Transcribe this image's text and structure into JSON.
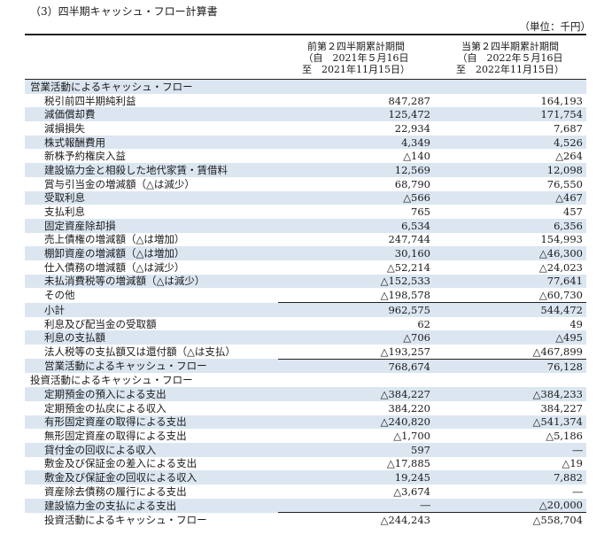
{
  "page": {
    "heading": "（3）四半期キャッシュ・フロー計算書",
    "unit_note": "（単位：千円）"
  },
  "columns": {
    "prev": {
      "title": "前第２四半期累計期間",
      "from": "（自　2021年５月16日",
      "to": "至　2021年11月15日）"
    },
    "curr": {
      "title": "当第２四半期累計期間",
      "from": "（自　2022年５月16日",
      "to": "至　2022年11月15日）"
    }
  },
  "rows": [
    {
      "label": "営業活動によるキャッシュ・フロー",
      "prev": "",
      "curr": "",
      "kind": "section"
    },
    {
      "label": "税引前四半期純利益",
      "prev": "847,287",
      "curr": "164,193",
      "kind": "item"
    },
    {
      "label": "減価償却費",
      "prev": "125,472",
      "curr": "171,754",
      "kind": "item"
    },
    {
      "label": "減損損失",
      "prev": "22,934",
      "curr": "7,687",
      "kind": "item"
    },
    {
      "label": "株式報酬費用",
      "prev": "4,349",
      "curr": "4,526",
      "kind": "item"
    },
    {
      "label": "新株予約権戻入益",
      "prev": "△140",
      "curr": "△264",
      "kind": "item"
    },
    {
      "label": "建設協力金と相殺した地代家賃・賃借料",
      "prev": "12,569",
      "curr": "12,098",
      "kind": "item"
    },
    {
      "label": "賞与引当金の増減額（△は減少）",
      "prev": "68,790",
      "curr": "76,550",
      "kind": "item"
    },
    {
      "label": "受取利息",
      "prev": "△566",
      "curr": "△467",
      "kind": "item"
    },
    {
      "label": "支払利息",
      "prev": "765",
      "curr": "457",
      "kind": "item"
    },
    {
      "label": "固定資産除却損",
      "prev": "6,534",
      "curr": "6,356",
      "kind": "item"
    },
    {
      "label": "売上債権の増減額（△は増加）",
      "prev": "247,744",
      "curr": "154,993",
      "kind": "item"
    },
    {
      "label": "棚卸資産の増減額（△は増加）",
      "prev": "30,160",
      "curr": "△46,300",
      "kind": "item"
    },
    {
      "label": "仕入債務の増減額（△は減少）",
      "prev": "△52,214",
      "curr": "△24,023",
      "kind": "item"
    },
    {
      "label": "未払消費税等の増減額（△は減少）",
      "prev": "△152,533",
      "curr": "77,641",
      "kind": "item"
    },
    {
      "label": "その他",
      "prev": "△198,578",
      "curr": "△60,730",
      "kind": "item"
    },
    {
      "label": "小計",
      "prev": "962,575",
      "curr": "544,472",
      "kind": "subtotal"
    },
    {
      "label": "利息及び配当金の受取額",
      "prev": "62",
      "curr": "49",
      "kind": "item"
    },
    {
      "label": "利息の支払額",
      "prev": "△706",
      "curr": "△495",
      "kind": "item"
    },
    {
      "label": "法人税等の支払額又は還付額（△は支払）",
      "prev": "△193,257",
      "curr": "△467,899",
      "kind": "item"
    },
    {
      "label": "営業活動によるキャッシュ・フロー",
      "prev": "768,674",
      "curr": "76,128",
      "kind": "subtotal"
    },
    {
      "label": "投資活動によるキャッシュ・フロー",
      "prev": "",
      "curr": "",
      "kind": "section"
    },
    {
      "label": "定期預金の預入による支出",
      "prev": "△384,227",
      "curr": "△384,233",
      "kind": "item"
    },
    {
      "label": "定期預金の払戻による収入",
      "prev": "384,220",
      "curr": "384,227",
      "kind": "item"
    },
    {
      "label": "有形固定資産の取得による支出",
      "prev": "△240,820",
      "curr": "△541,374",
      "kind": "item"
    },
    {
      "label": "無形固定資産の取得による支出",
      "prev": "△1,700",
      "curr": "△5,186",
      "kind": "item"
    },
    {
      "label": "貸付金の回収による収入",
      "prev": "597",
      "curr": "―",
      "kind": "item"
    },
    {
      "label": "敷金及び保証金の差入による支出",
      "prev": "△17,885",
      "curr": "△19",
      "kind": "item"
    },
    {
      "label": "敷金及び保証金の回収による収入",
      "prev": "19,245",
      "curr": "7,882",
      "kind": "item"
    },
    {
      "label": "資産除去債務の履行による支出",
      "prev": "△3,674",
      "curr": "―",
      "kind": "item"
    },
    {
      "label": "建設協力金の支払による支出",
      "prev": "―",
      "curr": "△20,000",
      "kind": "item"
    },
    {
      "label": "投資活動によるキャッシュ・フロー",
      "prev": "△244,243",
      "curr": "△558,704",
      "kind": "subtotal"
    }
  ]
}
